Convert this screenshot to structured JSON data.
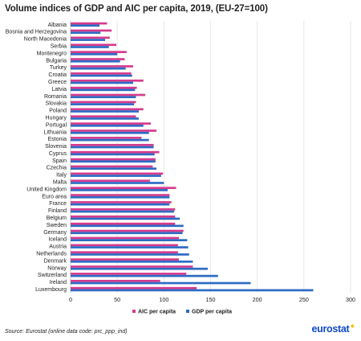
{
  "title": "Volume indices of GDP and AIC per capita, 2019, (EU-27=100)",
  "source": "Source: Eurostat (online data code: prc_ppp_ind)",
  "brand": "eurostat",
  "chart_data": {
    "type": "bar",
    "orientation": "horizontal",
    "title": "Volume indices of GDP and AIC per capita, 2019, (EU-27=100)",
    "categories": [
      "Albania",
      "Bosnia and Herzegovina",
      "North Macedonia",
      "Serbia",
      "Montenegro",
      "Bulgaria",
      "Turkey",
      "Croatia",
      "Greece",
      "Latvia",
      "Romania",
      "Slovakia",
      "Poland",
      "Hungary",
      "Portugal",
      "Lithuania",
      "Estonia",
      "Slovenia",
      "Cyprus",
      "Spain",
      "Czechia",
      "Italy",
      "Malta",
      "United Kingdom",
      "Euro area",
      "France",
      "Finland",
      "Belgium",
      "Sweden",
      "Germany",
      "Iceland",
      "Austria",
      "Netherlands",
      "Denmark",
      "Norway",
      "Switzerland",
      "Ireland",
      "Luxembourg"
    ],
    "series": [
      {
        "name": "AIC per capita",
        "color": "#d63b8d",
        "values": [
          39,
          44,
          42,
          49,
          60,
          58,
          67,
          65,
          78,
          71,
          80,
          70,
          78,
          70,
          86,
          92,
          76,
          89,
          95,
          91,
          88,
          99,
          85,
          113,
          106,
          108,
          112,
          112,
          112,
          121,
          116,
          115,
          115,
          116,
          131,
          124,
          96,
          135
        ]
      },
      {
        "name": "GDP per capita",
        "color": "#2e6bc4",
        "values": [
          31,
          32,
          37,
          41,
          50,
          53,
          59,
          66,
          67,
          69,
          70,
          68,
          73,
          73,
          78,
          84,
          84,
          89,
          90,
          91,
          92,
          97,
          100,
          104,
          106,
          106,
          111,
          117,
          121,
          120,
          125,
          126,
          127,
          131,
          147,
          158,
          193,
          260
        ]
      }
    ],
    "xlim": [
      0,
      300
    ],
    "xticks": [
      0,
      50,
      100,
      150,
      200,
      250,
      300
    ],
    "grid": "vertical",
    "legend": "bottom"
  }
}
